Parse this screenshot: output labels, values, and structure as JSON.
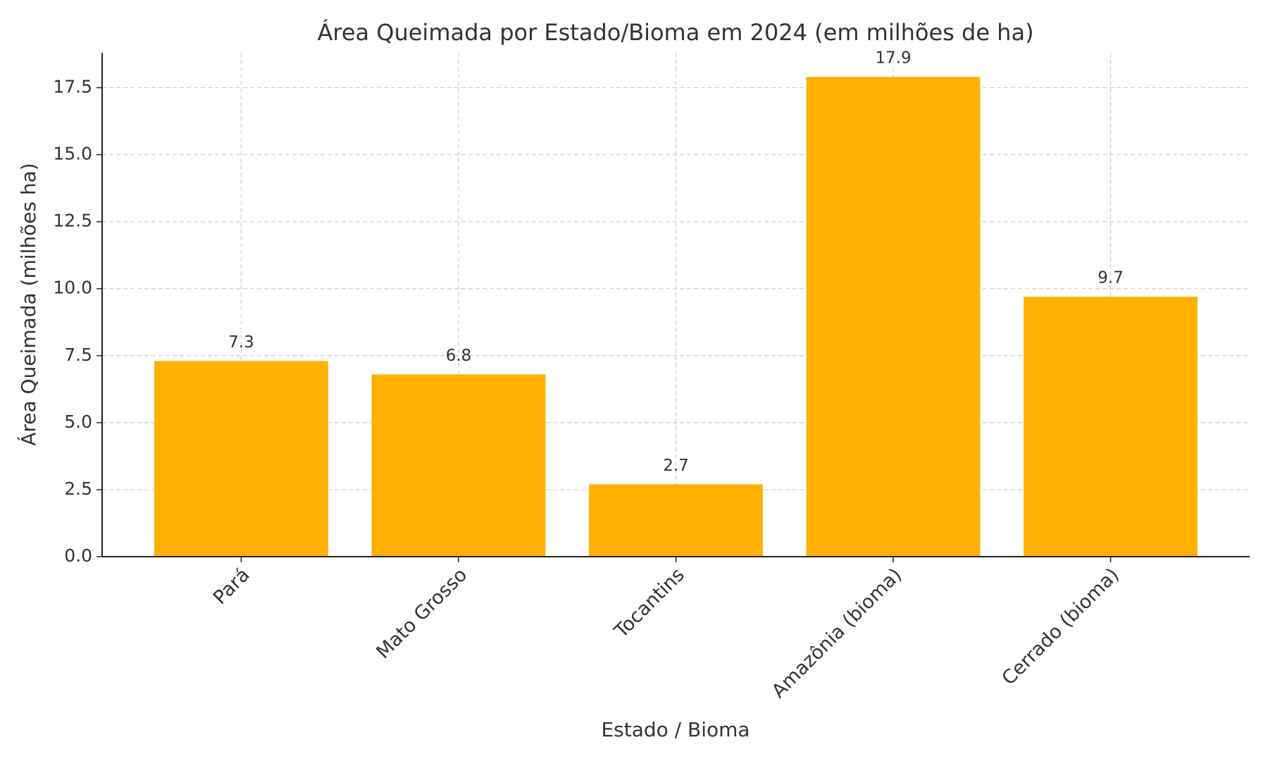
{
  "chart_data": {
    "type": "bar",
    "title": "Área Queimada por Estado/Bioma em 2024 (em milhões de ha)",
    "x_label": "Estado / Bioma",
    "y_label": "Área Queimada (milhões ha)",
    "categories": [
      "Pará",
      "Mato Grosso",
      "Tocantins",
      "Amazônia (bioma)",
      "Cerrado (bioma)"
    ],
    "values": [
      7.3,
      6.8,
      2.7,
      17.9,
      9.7
    ],
    "color": "#ffb000",
    "ylim": [
      0,
      18.8
    ],
    "yticks": [
      {
        "value": 0,
        "label": "0.0"
      },
      2.5,
      {
        "value": 5,
        "label": "5.0"
      },
      7.5,
      {
        "value": 10,
        "label": "10.0"
      },
      12.5,
      {
        "value": 15,
        "label": "15.0"
      },
      17.5
    ],
    "grid": true
  }
}
